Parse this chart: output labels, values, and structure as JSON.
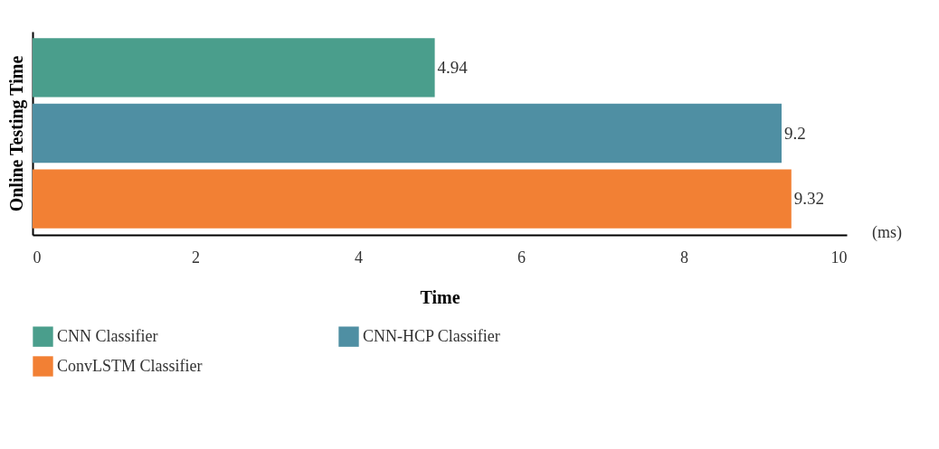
{
  "chart_data": {
    "type": "bar",
    "orientation": "horizontal",
    "categories": [
      null,
      null,
      null
    ],
    "series": [
      {
        "name": "CNN Classifier",
        "color": "#4a9e8c",
        "values": [
          4.94,
          null,
          null
        ]
      },
      {
        "name": "CNN-HCP Classifier",
        "color": "#4f8fa3",
        "values": [
          null,
          9.2,
          null
        ]
      },
      {
        "name": "ConvLSTM Classifier",
        "color": "#f28034",
        "values": [
          null,
          null,
          9.32
        ]
      }
    ],
    "xlim": [
      0,
      10
    ],
    "xticks": [
      0,
      2,
      4,
      6,
      8,
      10
    ],
    "xlabel": "Time",
    "ylabel": "Online Testing Time",
    "annotations": [
      "(ms)"
    ],
    "data_labels": true,
    "legend": "bottom",
    "grid": false
  }
}
